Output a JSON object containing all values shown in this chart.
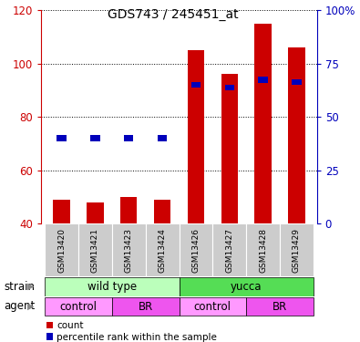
{
  "title": "GDS743 / 245451_at",
  "samples": [
    "GSM13420",
    "GSM13421",
    "GSM13423",
    "GSM13424",
    "GSM13426",
    "GSM13427",
    "GSM13428",
    "GSM13429"
  ],
  "bar_values": [
    49,
    48,
    50,
    49,
    105,
    96,
    115,
    106
  ],
  "percentile_left_axis": [
    72,
    72,
    72,
    72,
    92,
    91,
    94,
    93
  ],
  "bar_color": "#cc0000",
  "percentile_color": "#0000bb",
  "ymin": 40,
  "ymax": 120,
  "yticks": [
    40,
    60,
    80,
    100,
    120
  ],
  "y2min": 0,
  "y2max": 100,
  "y2ticks": [
    0,
    25,
    50,
    75,
    100
  ],
  "y2ticklabels": [
    "0",
    "25",
    "50",
    "75",
    "100%"
  ],
  "strain_groups": [
    {
      "label": "wild type",
      "start": 0,
      "end": 4,
      "color": "#bbffbb"
    },
    {
      "label": "yucca",
      "start": 4,
      "end": 8,
      "color": "#55dd55"
    }
  ],
  "agent_groups": [
    {
      "label": "control",
      "start": 0,
      "end": 2,
      "color": "#ff99ff"
    },
    {
      "label": "BR",
      "start": 2,
      "end": 4,
      "color": "#ee55ee"
    },
    {
      "label": "control",
      "start": 4,
      "end": 6,
      "color": "#ff99ff"
    },
    {
      "label": "BR",
      "start": 6,
      "end": 8,
      "color": "#ee55ee"
    }
  ],
  "bar_width": 0.5,
  "tick_color_left": "#cc0000",
  "tick_color_right": "#0000bb",
  "strain_label": "strain",
  "agent_label": "agent",
  "legend_count": "count",
  "legend_percentile": "percentile rank within the sample"
}
